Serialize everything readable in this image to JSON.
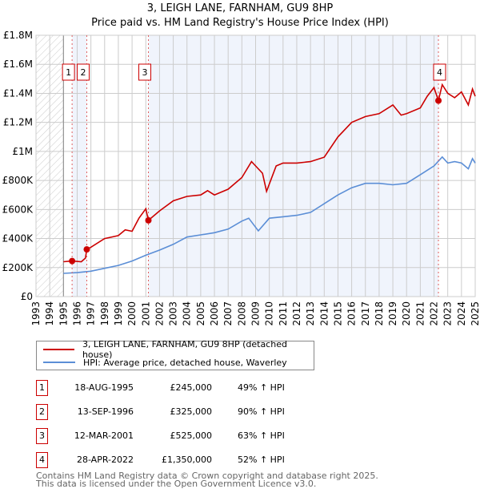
{
  "title": "3, LEIGH LANE, FARNHAM, GU9 8HP",
  "subtitle": "Price paid vs. HM Land Registry's House Price Index (HPI)",
  "chart_data": {
    "type": "line",
    "ylim": [
      0,
      1800000
    ],
    "xlim": [
      1993,
      2025
    ],
    "y_ticks": [
      {
        "v": 0,
        "label": "£0"
      },
      {
        "v": 200000,
        "label": "£200K"
      },
      {
        "v": 400000,
        "label": "£400K"
      },
      {
        "v": 600000,
        "label": "£600K"
      },
      {
        "v": 800000,
        "label": "£800K"
      },
      {
        "v": 1000000,
        "label": "£1M"
      },
      {
        "v": 1200000,
        "label": "£1.2M"
      },
      {
        "v": 1400000,
        "label": "£1.4M"
      },
      {
        "v": 1600000,
        "label": "£1.6M"
      },
      {
        "v": 1800000,
        "label": "£1.8M"
      }
    ],
    "x_ticks": [
      "1993",
      "1994",
      "1995",
      "1996",
      "1997",
      "1998",
      "1999",
      "2000",
      "2001",
      "2002",
      "2003",
      "2004",
      "2005",
      "2006",
      "2007",
      "2008",
      "2009",
      "2010",
      "2011",
      "2012",
      "2013",
      "2014",
      "2015",
      "2016",
      "2017",
      "2018",
      "2019",
      "2020",
      "2021",
      "2022",
      "2023",
      "2024",
      "2025"
    ],
    "series": [
      {
        "name": "3, LEIGH LANE, FARNHAM, GU9 8HP (detached house)",
        "color": "#cc0000",
        "x": [
          1995,
          1995.63,
          1996.3,
          1996.6,
          1996.7,
          1997,
          1998,
          1999,
          1999.5,
          2000,
          2000.5,
          2001,
          2001.19,
          2002,
          2003,
          2004,
          2005,
          2005.5,
          2006,
          2007,
          2008,
          2008.7,
          2009,
          2009.5,
          2009.8,
          2010.5,
          2011,
          2012,
          2013,
          2014,
          2015,
          2016,
          2017,
          2018,
          2019,
          2019.6,
          2020,
          2021,
          2021.5,
          2022,
          2022.32,
          2022.6,
          2023,
          2023.5,
          2024,
          2024.5,
          2024.8,
          2025
        ],
        "y": [
          240000,
          245000,
          240000,
          265000,
          325000,
          340000,
          400000,
          420000,
          460000,
          450000,
          540000,
          605000,
          525000,
          590000,
          660000,
          690000,
          700000,
          730000,
          700000,
          740000,
          820000,
          930000,
          900000,
          850000,
          725000,
          900000,
          920000,
          920000,
          930000,
          960000,
          1100000,
          1200000,
          1240000,
          1260000,
          1320000,
          1250000,
          1260000,
          1300000,
          1380000,
          1440000,
          1350000,
          1460000,
          1400000,
          1370000,
          1410000,
          1320000,
          1430000,
          1380000
        ]
      },
      {
        "name": "HPI: Average price, detached house, Waverley",
        "color": "#5b8ed6",
        "x": [
          1995,
          1996,
          1997,
          1998,
          1999,
          2000,
          2001,
          2002,
          2003,
          2004,
          2005,
          2006,
          2007,
          2008,
          2008.5,
          2009.2,
          2010,
          2011,
          2012,
          2013,
          2014,
          2015,
          2016,
          2017,
          2018,
          2019,
          2020,
          2021,
          2022,
          2022.6,
          2023,
          2023.5,
          2024,
          2024.5,
          2024.8,
          2025
        ],
        "y": [
          160000,
          165000,
          175000,
          195000,
          215000,
          245000,
          285000,
          320000,
          360000,
          410000,
          425000,
          440000,
          465000,
          520000,
          540000,
          453000,
          540000,
          550000,
          560000,
          580000,
          640000,
          700000,
          750000,
          780000,
          780000,
          770000,
          780000,
          840000,
          900000,
          962000,
          920000,
          930000,
          920000,
          880000,
          950000,
          920000
        ]
      }
    ],
    "sales": [
      {
        "n": "1",
        "x": 1995.63,
        "y": 245000
      },
      {
        "n": "2",
        "x": 1996.7,
        "y": 325000
      },
      {
        "n": "3",
        "x": 2001.19,
        "y": 525000
      },
      {
        "n": "4",
        "x": 2022.32,
        "y": 1350000
      }
    ]
  },
  "legend": {
    "property": "3, LEIGH LANE, FARNHAM, GU9 8HP (detached house)",
    "hpi": "HPI: Average price, detached house, Waverley"
  },
  "table": [
    {
      "n": "1",
      "date": "18-AUG-1995",
      "price": "£245,000",
      "hpi": "49% ↑ HPI"
    },
    {
      "n": "2",
      "date": "13-SEP-1996",
      "price": "£325,000",
      "hpi": "90% ↑ HPI"
    },
    {
      "n": "3",
      "date": "12-MAR-2001",
      "price": "£525,000",
      "hpi": "63% ↑ HPI"
    },
    {
      "n": "4",
      "date": "28-APR-2022",
      "price": "£1,350,000",
      "hpi": "52% ↑ HPI"
    }
  ],
  "footer": {
    "line1": "Contains HM Land Registry data © Crown copyright and database right 2025.",
    "line2": "This data is licensed under the Open Government Licence v3.0."
  }
}
